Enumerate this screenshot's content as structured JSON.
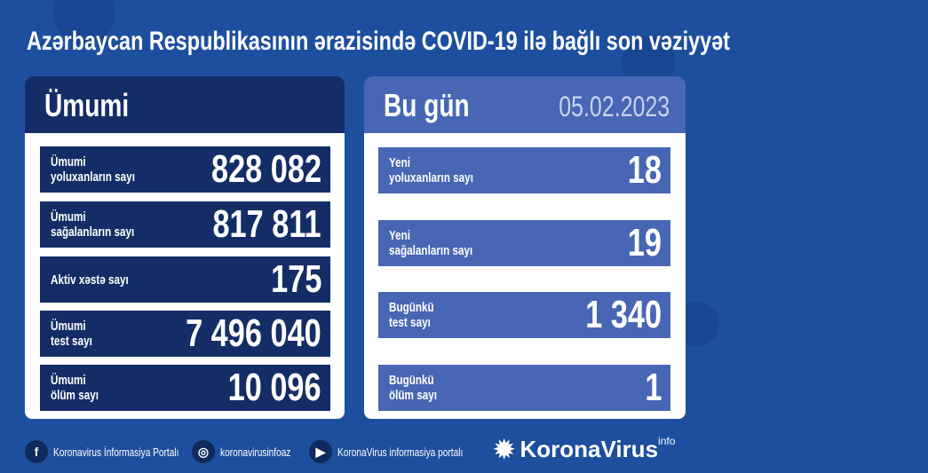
{
  "title": "Azərbaycan Respublikasının ərazisində COVID-19 ilə bağlı son vəziyyət",
  "total": {
    "heading": "Ümumi",
    "rows": [
      {
        "label1": "Ümumi",
        "label2": "yoluxanların sayı",
        "value": "828 082"
      },
      {
        "label1": "Ümumi",
        "label2": "sağalanların sayı",
        "value": "817 811"
      },
      {
        "label1": "Aktiv xəstə sayı",
        "label2": "",
        "value": "175"
      },
      {
        "label1": "Ümumi",
        "label2": "test sayı",
        "value": "7 496 040"
      },
      {
        "label1": "Ümumi",
        "label2": "ölüm sayı",
        "value": "10 096"
      }
    ]
  },
  "today": {
    "heading": "Bu gün",
    "date": "05.02.2023",
    "rows": [
      {
        "label1": "Yeni",
        "label2": "yoluxanların sayı",
        "value": "18"
      },
      {
        "label1": "Yeni",
        "label2": "sağalanların sayı",
        "value": "19"
      },
      {
        "label1": "Bugünkü",
        "label2": "test sayı",
        "value": "1 340"
      },
      {
        "label1": "Bugünkü",
        "label2": "ölüm sayı",
        "value": "1"
      }
    ]
  },
  "footer": {
    "facebook": "Koronavirus İnformasiya Portalı",
    "instagram": "koronavirusinfoaz",
    "youtube": "KoronaVirus informasiya portalı",
    "logo": "KoronaVirus",
    "logo_sup": "info"
  },
  "colors": {
    "background": "#1d4f9e",
    "left_panel": "#142d66",
    "right_panel": "#4766b4"
  }
}
